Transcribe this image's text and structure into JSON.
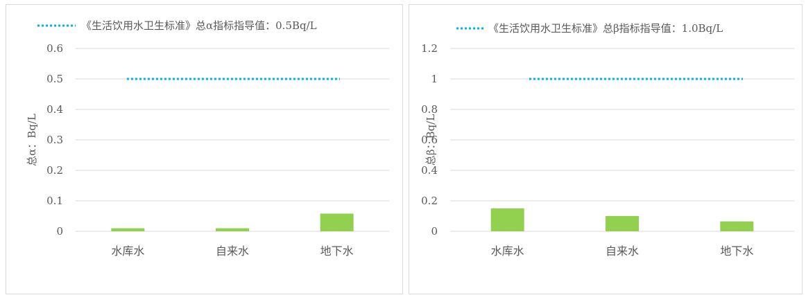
{
  "colors": {
    "bar": "#92d050",
    "standard_line": "#00b0f0",
    "grid": "#d9d9d9",
    "text": "#595959"
  },
  "chart_data": [
    {
      "type": "bar",
      "categories": [
        "水库水",
        "自来水",
        "地下水"
      ],
      "series": [
        {
          "values": [
            0.01,
            0.01,
            0.058
          ]
        }
      ],
      "reference_line": {
        "label": "《生活饮用水卫生标准》总α指标指导值：0.5Bq/L",
        "value": 0.5
      },
      "ylabel": "总α：Bq/L",
      "ylim": [
        0,
        0.6
      ],
      "yticks": [
        "0",
        "0.1",
        "0.2",
        "0.3",
        "0.4",
        "0.5",
        "0.6"
      ],
      "grid": true,
      "legend_position": "top"
    },
    {
      "type": "bar",
      "categories": [
        "水库水",
        "自来水",
        "地下水"
      ],
      "series": [
        {
          "values": [
            0.15,
            0.1,
            0.065
          ]
        }
      ],
      "reference_line": {
        "label": "《生活饮用水卫生标准》总β指标指导值：1.0Bq/L",
        "value": 1.0
      },
      "ylabel": "总β：Bq/L",
      "ylim": [
        0,
        1.2
      ],
      "yticks": [
        "0",
        "0.2",
        "0.4",
        "0.6",
        "0.8",
        "1",
        "1.2"
      ],
      "grid": true,
      "legend_position": "top"
    }
  ]
}
